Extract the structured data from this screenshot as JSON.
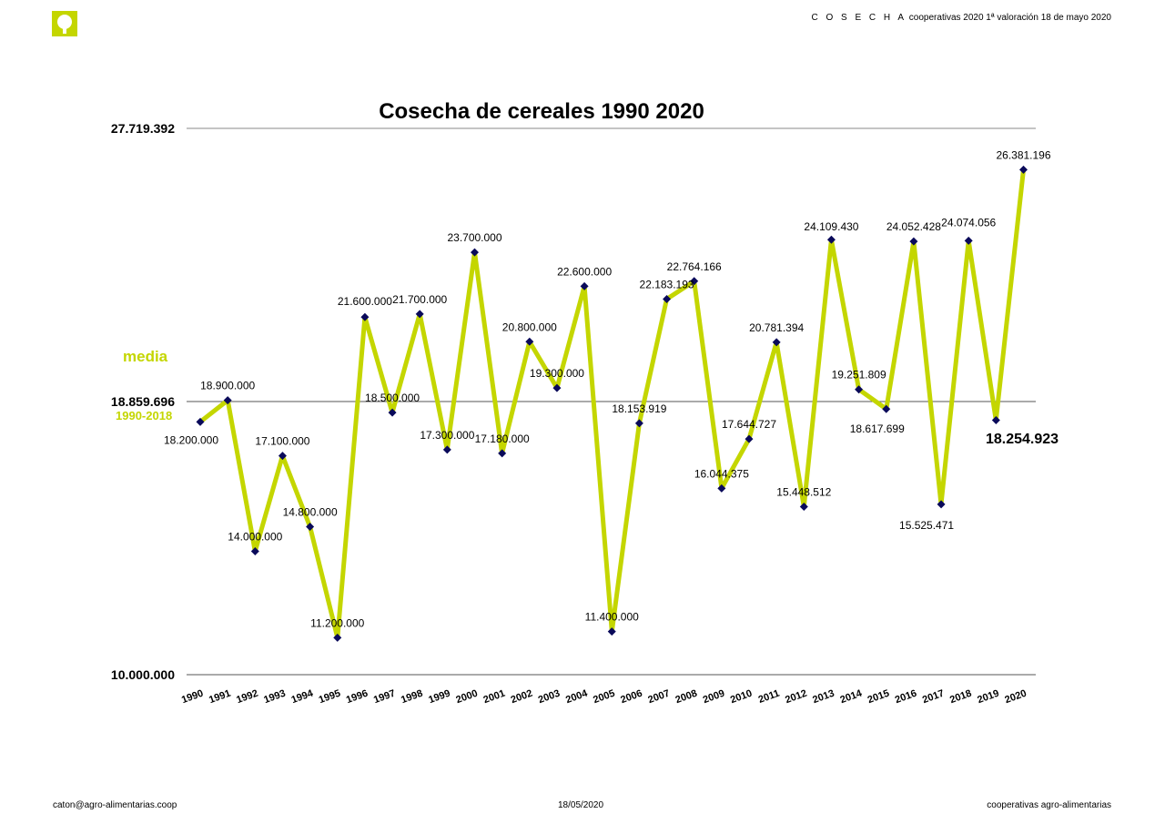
{
  "header": {
    "brand_spaced": "C O S E C H A",
    "brand_rest": " cooperativas 2020  1ª valoración 18 de mayo 2020"
  },
  "footer": {
    "email": "caton@agro-alimentarias.coop",
    "date": "18/05/2020",
    "org": "cooperativas agro-alimentarias"
  },
  "logo": {
    "icon": "cooperativas-logo-icon",
    "color": "#c4d600"
  },
  "annotations": {
    "media_label": "media",
    "period_label": "1990-2018",
    "color": "#c4d600"
  },
  "chart_data": {
    "type": "line",
    "title": "Cosecha de cereales 1990 2020",
    "xlabel": "",
    "ylabel": "",
    "ylim": [
      10000000,
      27719392
    ],
    "ytick_labels": [
      "27.719.392",
      "18.859.696",
      "10.000.000"
    ],
    "yticks": [
      27719392,
      18859696,
      10000000
    ],
    "reference_line": {
      "value": 18859696,
      "label": "18.859.696"
    },
    "line_color": "#c4d600",
    "marker_color": "#0a0a5a",
    "grid": false,
    "categories": [
      "1990",
      "1991",
      "1992",
      "1993",
      "1994",
      "1995",
      "1996",
      "1997",
      "1998",
      "1999",
      "2000",
      "2001",
      "2002",
      "2003",
      "2004",
      "2005",
      "2006",
      "2007",
      "2008",
      "2009",
      "2010",
      "2011",
      "2012",
      "2013",
      "2014",
      "2015",
      "2016",
      "2017",
      "2018",
      "2019",
      "2020"
    ],
    "values": [
      18200000,
      18900000,
      14000000,
      17100000,
      14800000,
      11200000,
      21600000,
      18500000,
      21700000,
      17300000,
      23700000,
      17180000,
      20800000,
      19300000,
      22600000,
      11400000,
      18153919,
      22183193,
      22764166,
      16044375,
      17644727,
      20781394,
      15448512,
      24109430,
      19251809,
      18617699,
      24052428,
      15525471,
      24074056,
      18254923,
      26381196
    ],
    "data_labels": [
      "18.200.000",
      "18.900.000",
      "14.000.000",
      "17.100.000",
      "14.800.000",
      "11.200.000",
      "21.600.000",
      "18.500.000",
      "21.700.000",
      "17.300.000",
      "23.700.000",
      "17.180.000",
      "20.800.000",
      "19.300.000",
      "22.600.000",
      "11.400.000",
      "18.153.919",
      "22.183.193",
      "22.764.166",
      "16.044.375",
      "17.644.727",
      "20.781.394",
      "15.448.512",
      "24.109.430",
      "19.251.809",
      "18.617.699",
      "24.052.428",
      "15.525.471",
      "24.074.056",
      "18.254.923",
      "26.381.196"
    ]
  }
}
